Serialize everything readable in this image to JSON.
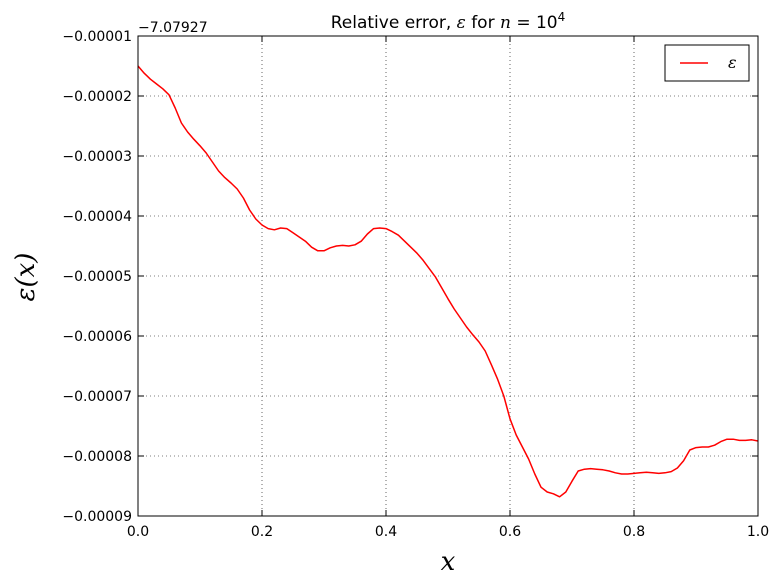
{
  "chart_data": {
    "type": "line",
    "title_prefix": "Relative error, ",
    "title_math_symbol": "ε",
    "title_mid": " for ",
    "title_math_n": "n",
    "title_eq": " = 10",
    "title_exp": "4",
    "xlabel": "x",
    "ylabel": "ε(x)",
    "y_offset_label": "−7.07927",
    "xlim": [
      0.0,
      1.0
    ],
    "ylim": [
      -9e-05,
      -1e-05
    ],
    "grid": true,
    "grid_style": "dotted",
    "legend_placement": "top-right",
    "x_ticks": [
      0.0,
      0.2,
      0.4,
      0.6,
      0.8,
      1.0
    ],
    "x_tick_labels": [
      "0.0",
      "0.2",
      "0.4",
      "0.6",
      "0.8",
      "1.0"
    ],
    "y_ticks": [
      -1e-05,
      -2e-05,
      -3e-05,
      -4e-05,
      -5e-05,
      -6e-05,
      -7e-05,
      -8e-05,
      -9e-05
    ],
    "y_tick_labels": [
      "−0.00001",
      "−0.00002",
      "−0.00003",
      "−0.00004",
      "−0.00005",
      "−0.00006",
      "−0.00007",
      "−0.00008",
      "−0.00009"
    ],
    "series": [
      {
        "name": "ε",
        "color": "#ff0000",
        "x": [
          0.0,
          0.01,
          0.02,
          0.03,
          0.04,
          0.05,
          0.06,
          0.07,
          0.08,
          0.09,
          0.1,
          0.11,
          0.12,
          0.13,
          0.14,
          0.15,
          0.16,
          0.17,
          0.18,
          0.19,
          0.2,
          0.21,
          0.22,
          0.23,
          0.24,
          0.25,
          0.26,
          0.27,
          0.28,
          0.29,
          0.3,
          0.31,
          0.32,
          0.33,
          0.34,
          0.35,
          0.36,
          0.37,
          0.38,
          0.39,
          0.4,
          0.41,
          0.42,
          0.43,
          0.44,
          0.45,
          0.46,
          0.47,
          0.48,
          0.49,
          0.5,
          0.51,
          0.52,
          0.53,
          0.54,
          0.55,
          0.56,
          0.57,
          0.58,
          0.59,
          0.6,
          0.61,
          0.62,
          0.63,
          0.64,
          0.65,
          0.66,
          0.67,
          0.68,
          0.69,
          0.7,
          0.71,
          0.72,
          0.73,
          0.74,
          0.75,
          0.76,
          0.77,
          0.78,
          0.79,
          0.8,
          0.81,
          0.82,
          0.83,
          0.84,
          0.85,
          0.86,
          0.87,
          0.88,
          0.89,
          0.9,
          0.91,
          0.92,
          0.93,
          0.94,
          0.95,
          0.96,
          0.97,
          0.98,
          0.99,
          1.0
        ],
        "y": [
          -1.5e-05,
          -1.62e-05,
          -1.72e-05,
          -1.8e-05,
          -1.88e-05,
          -1.98e-05,
          -2.2e-05,
          -2.45e-05,
          -2.6e-05,
          -2.72e-05,
          -2.83e-05,
          -2.95e-05,
          -3.1e-05,
          -3.25e-05,
          -3.36e-05,
          -3.45e-05,
          -3.55e-05,
          -3.7e-05,
          -3.9e-05,
          -4.05e-05,
          -4.15e-05,
          -4.21e-05,
          -4.23e-05,
          -4.2e-05,
          -4.21e-05,
          -4.28e-05,
          -4.35e-05,
          -4.42e-05,
          -4.52e-05,
          -4.58e-05,
          -4.58e-05,
          -4.53e-05,
          -4.5e-05,
          -4.49e-05,
          -4.5e-05,
          -4.48e-05,
          -4.42e-05,
          -4.3e-05,
          -4.21e-05,
          -4.2e-05,
          -4.21e-05,
          -4.26e-05,
          -4.32e-05,
          -4.42e-05,
          -4.52e-05,
          -4.62e-05,
          -4.74e-05,
          -4.88e-05,
          -5.02e-05,
          -5.2e-05,
          -5.38e-05,
          -5.55e-05,
          -5.7e-05,
          -5.85e-05,
          -5.98e-05,
          -6.1e-05,
          -6.25e-05,
          -6.48e-05,
          -6.72e-05,
          -7e-05,
          -7.38e-05,
          -7.65e-05,
          -7.85e-05,
          -8.05e-05,
          -8.3e-05,
          -8.52e-05,
          -8.6e-05,
          -8.63e-05,
          -8.68e-05,
          -8.6e-05,
          -8.42e-05,
          -8.25e-05,
          -8.22e-05,
          -8.21e-05,
          -8.22e-05,
          -8.23e-05,
          -8.25e-05,
          -8.28e-05,
          -8.3e-05,
          -8.3e-05,
          -8.29e-05,
          -8.28e-05,
          -8.27e-05,
          -8.28e-05,
          -8.29e-05,
          -8.28e-05,
          -8.26e-05,
          -8.2e-05,
          -8.08e-05,
          -7.9e-05,
          -7.86e-05,
          -7.85e-05,
          -7.85e-05,
          -7.82e-05,
          -7.76e-05,
          -7.72e-05,
          -7.72e-05,
          -7.74e-05,
          -7.74e-05,
          -7.73e-05,
          -7.75e-05
        ]
      }
    ]
  }
}
